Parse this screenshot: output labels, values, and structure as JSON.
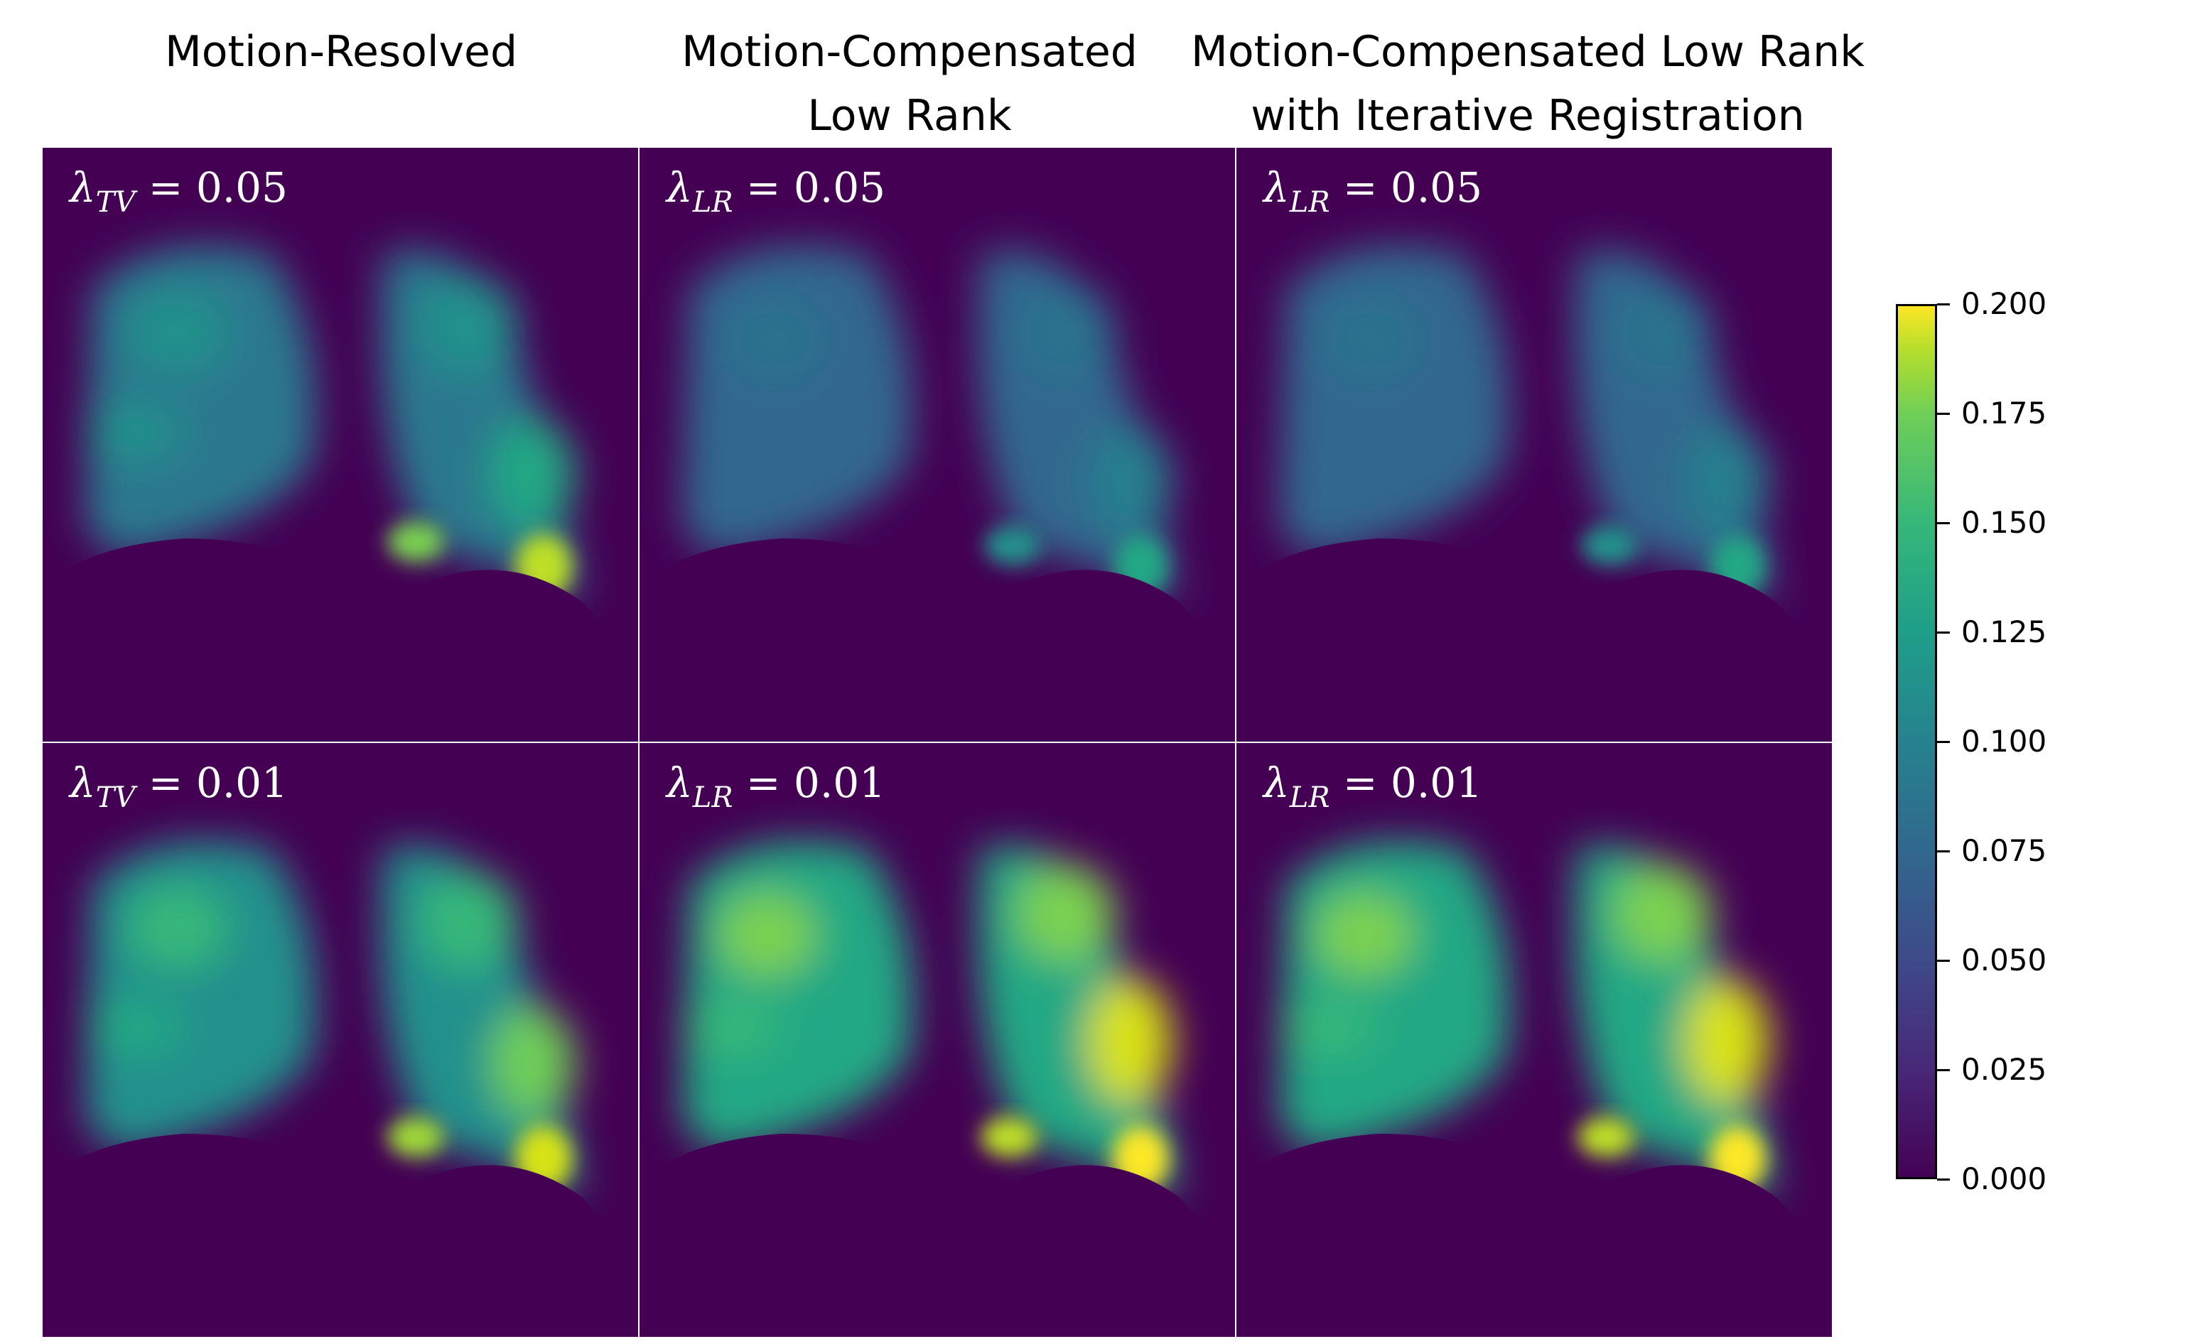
{
  "titles": {
    "col1": "Motion-Resolved",
    "col2_line1": "Motion-Compensated",
    "col2_line2": "Low Rank",
    "col3_line1": "Motion-Compensated Low Rank",
    "col3_line2": "with Iterative Registration"
  },
  "panels": {
    "r1c1": {
      "symbol": "λ",
      "sub": "TV",
      "eq": " = 0.05"
    },
    "r1c2": {
      "symbol": "λ",
      "sub": "LR",
      "eq": " = 0.05"
    },
    "r1c3": {
      "symbol": "λ",
      "sub": "LR",
      "eq": " = 0.05"
    },
    "r2c1": {
      "symbol": "λ",
      "sub": "TV",
      "eq": " = 0.01"
    },
    "r2c2": {
      "symbol": "λ",
      "sub": "LR",
      "eq": " = 0.01"
    },
    "r2c3": {
      "symbol": "λ",
      "sub": "LR",
      "eq": " = 0.01"
    }
  },
  "colorbar": {
    "ticks": [
      "0.200",
      "0.175",
      "0.150",
      "0.125",
      "0.100",
      "0.075",
      "0.050",
      "0.025",
      "0.000"
    ],
    "colors": {
      "min": "#440154",
      "max": "#fde725"
    }
  }
}
